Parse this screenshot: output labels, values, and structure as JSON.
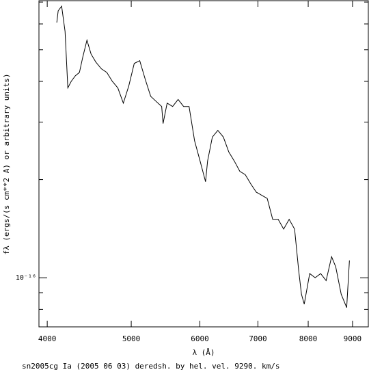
{
  "chart_data": {
    "type": "line",
    "footer": "sn2005cg Ia (2005 06 03) deredsh. by hel. vel.  9290. km/s",
    "x_label": "λ (Å)",
    "y_label": "fλ (ergs/(s cm**2 A) or arbitrary units)",
    "xlog": true,
    "ylog": true,
    "grid": false,
    "xlim": [
      3913,
      9385
    ],
    "ylim": [
      7.07e-17,
      7.07e-16
    ],
    "xticks": [
      4000,
      5000,
      6000,
      7000,
      8000,
      9000
    ],
    "yticks": [
      {
        "value": 1e-16,
        "label": "10⁻¹⁶"
      }
    ],
    "yminor_ticks": [
      8e-17,
      9e-17,
      2e-16,
      3e-16,
      4e-16,
      5e-16,
      6e-16,
      7e-16
    ],
    "series": [
      {
        "color": "#000000",
        "x": [
          4103,
          4118,
          4156,
          4194,
          4225,
          4263,
          4310,
          4357,
          4397,
          4445,
          4494,
          4552,
          4619,
          4686,
          4755,
          4825,
          4896,
          4967,
          5040,
          5114,
          5189,
          5265,
          5343,
          5421,
          5441,
          5500,
          5581,
          5663,
          5746,
          5830,
          5916,
          6003,
          6091,
          6124,
          6202,
          6293,
          6386,
          6479,
          6574,
          6671,
          6769,
          6868,
          6969,
          7071,
          7175,
          7280,
          7387,
          7495,
          7605,
          7716,
          7801,
          7858,
          7916,
          8032,
          8149,
          8269,
          8390,
          8513,
          8607,
          8733,
          8861,
          8926
        ],
        "values": [
          6.06e-16,
          6.58e-16,
          6.8e-16,
          5.69e-16,
          3.82e-16,
          4e-16,
          4.16e-16,
          4.26e-16,
          4.76e-16,
          5.35e-16,
          4.85e-16,
          4.58e-16,
          4.37e-16,
          4.26e-16,
          4e-16,
          3.82e-16,
          3.43e-16,
          3.87e-16,
          4.54e-16,
          4.63e-16,
          4.06e-16,
          3.6e-16,
          3.47e-16,
          3.35e-16,
          2.97e-16,
          3.43e-16,
          3.35e-16,
          3.52e-16,
          3.35e-16,
          3.35e-16,
          2.63e-16,
          2.28e-16,
          1.97e-16,
          2.28e-16,
          2.7e-16,
          2.83e-16,
          2.7e-16,
          2.43e-16,
          2.28e-16,
          2.12e-16,
          2.07e-16,
          1.94e-16,
          1.83e-16,
          1.79e-16,
          1.75e-16,
          1.51e-16,
          1.51e-16,
          1.41e-16,
          1.51e-16,
          1.41e-16,
          1.05e-16,
          8.9e-17,
          8.3e-17,
          1.03e-16,
          1e-16,
          1.03e-16,
          9.8e-17,
          1.16e-16,
          1.08e-16,
          8.9e-17,
          8.1e-17,
          1.13e-16
        ]
      }
    ]
  }
}
